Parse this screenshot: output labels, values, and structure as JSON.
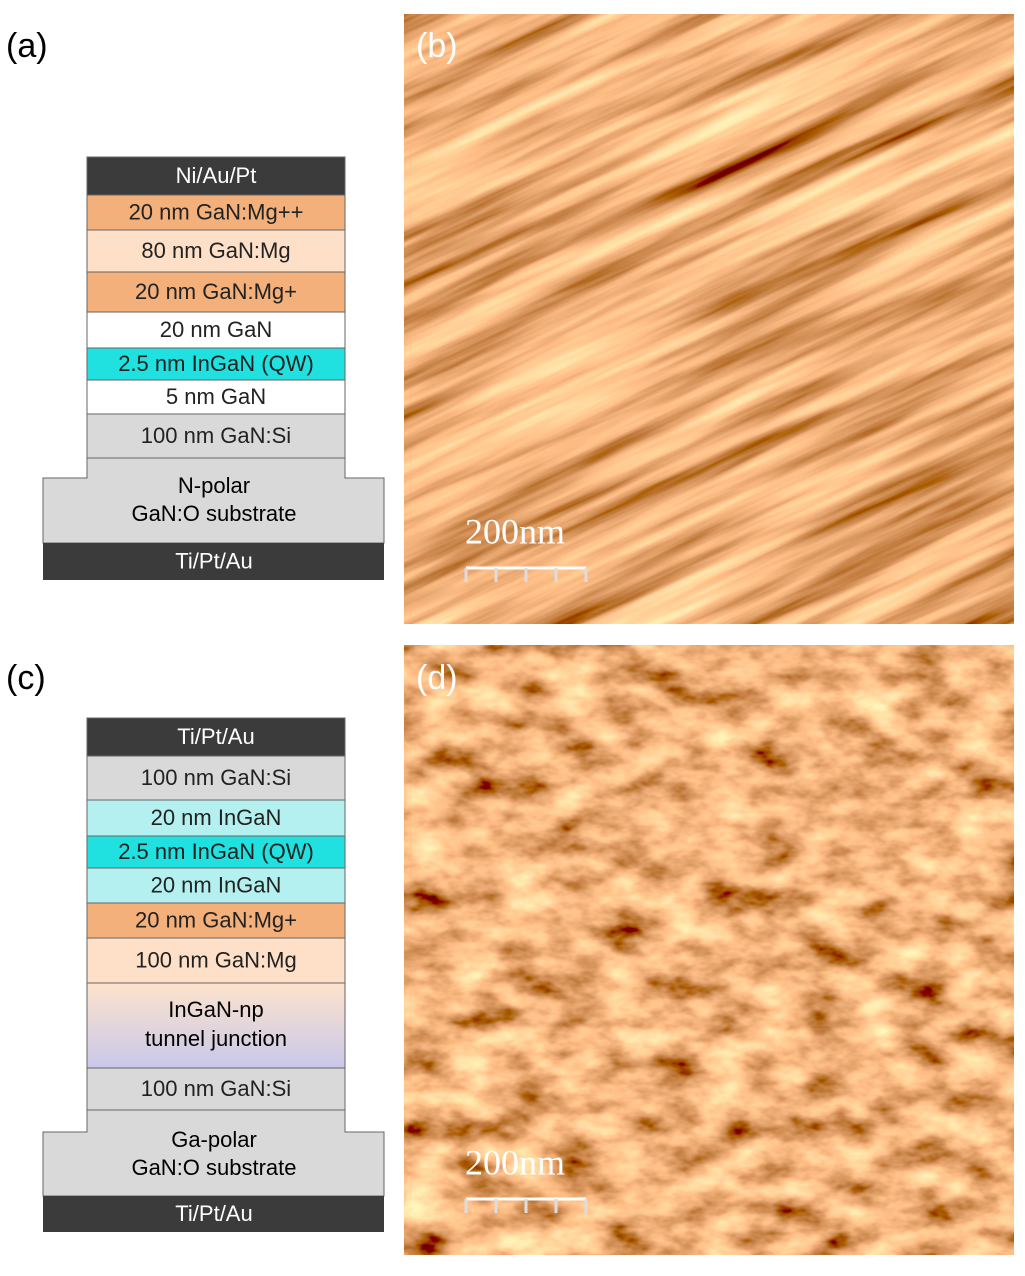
{
  "panel_a": {
    "label": "(a)",
    "layers": [
      "Ni/Au/Pt",
      "20 nm  GaN:Mg++",
      "80 nm  GaN:Mg",
      "20 nm  GaN:Mg+",
      "20 nm GaN",
      "2.5 nm InGaN (QW)",
      "5 nm  GaN",
      "100 nm  GaN:Si"
    ],
    "substrate": [
      "N-polar",
      "GaN:O substrate"
    ],
    "contact": "Ti/Pt/Au"
  },
  "panel_b": {
    "label": "(b)",
    "scale_bar": "200nm"
  },
  "panel_c": {
    "label": "(c)",
    "layers": [
      "Ti/Pt/Au",
      "100 nm GaN:Si",
      "20 nm InGaN",
      "2.5 nm InGaN (QW)",
      "20 nm InGaN",
      "20 nm  GaN:Mg+",
      "100 nm  GaN:Mg",
      [
        "InGaN-np",
        "tunnel junction"
      ],
      "100 nm  GaN:Si"
    ],
    "substrate": [
      "Ga-polar",
      "GaN:O substrate"
    ],
    "contact": "Ti/Pt/Au"
  },
  "panel_d": {
    "label": "(d)",
    "scale_bar": "200nm"
  }
}
